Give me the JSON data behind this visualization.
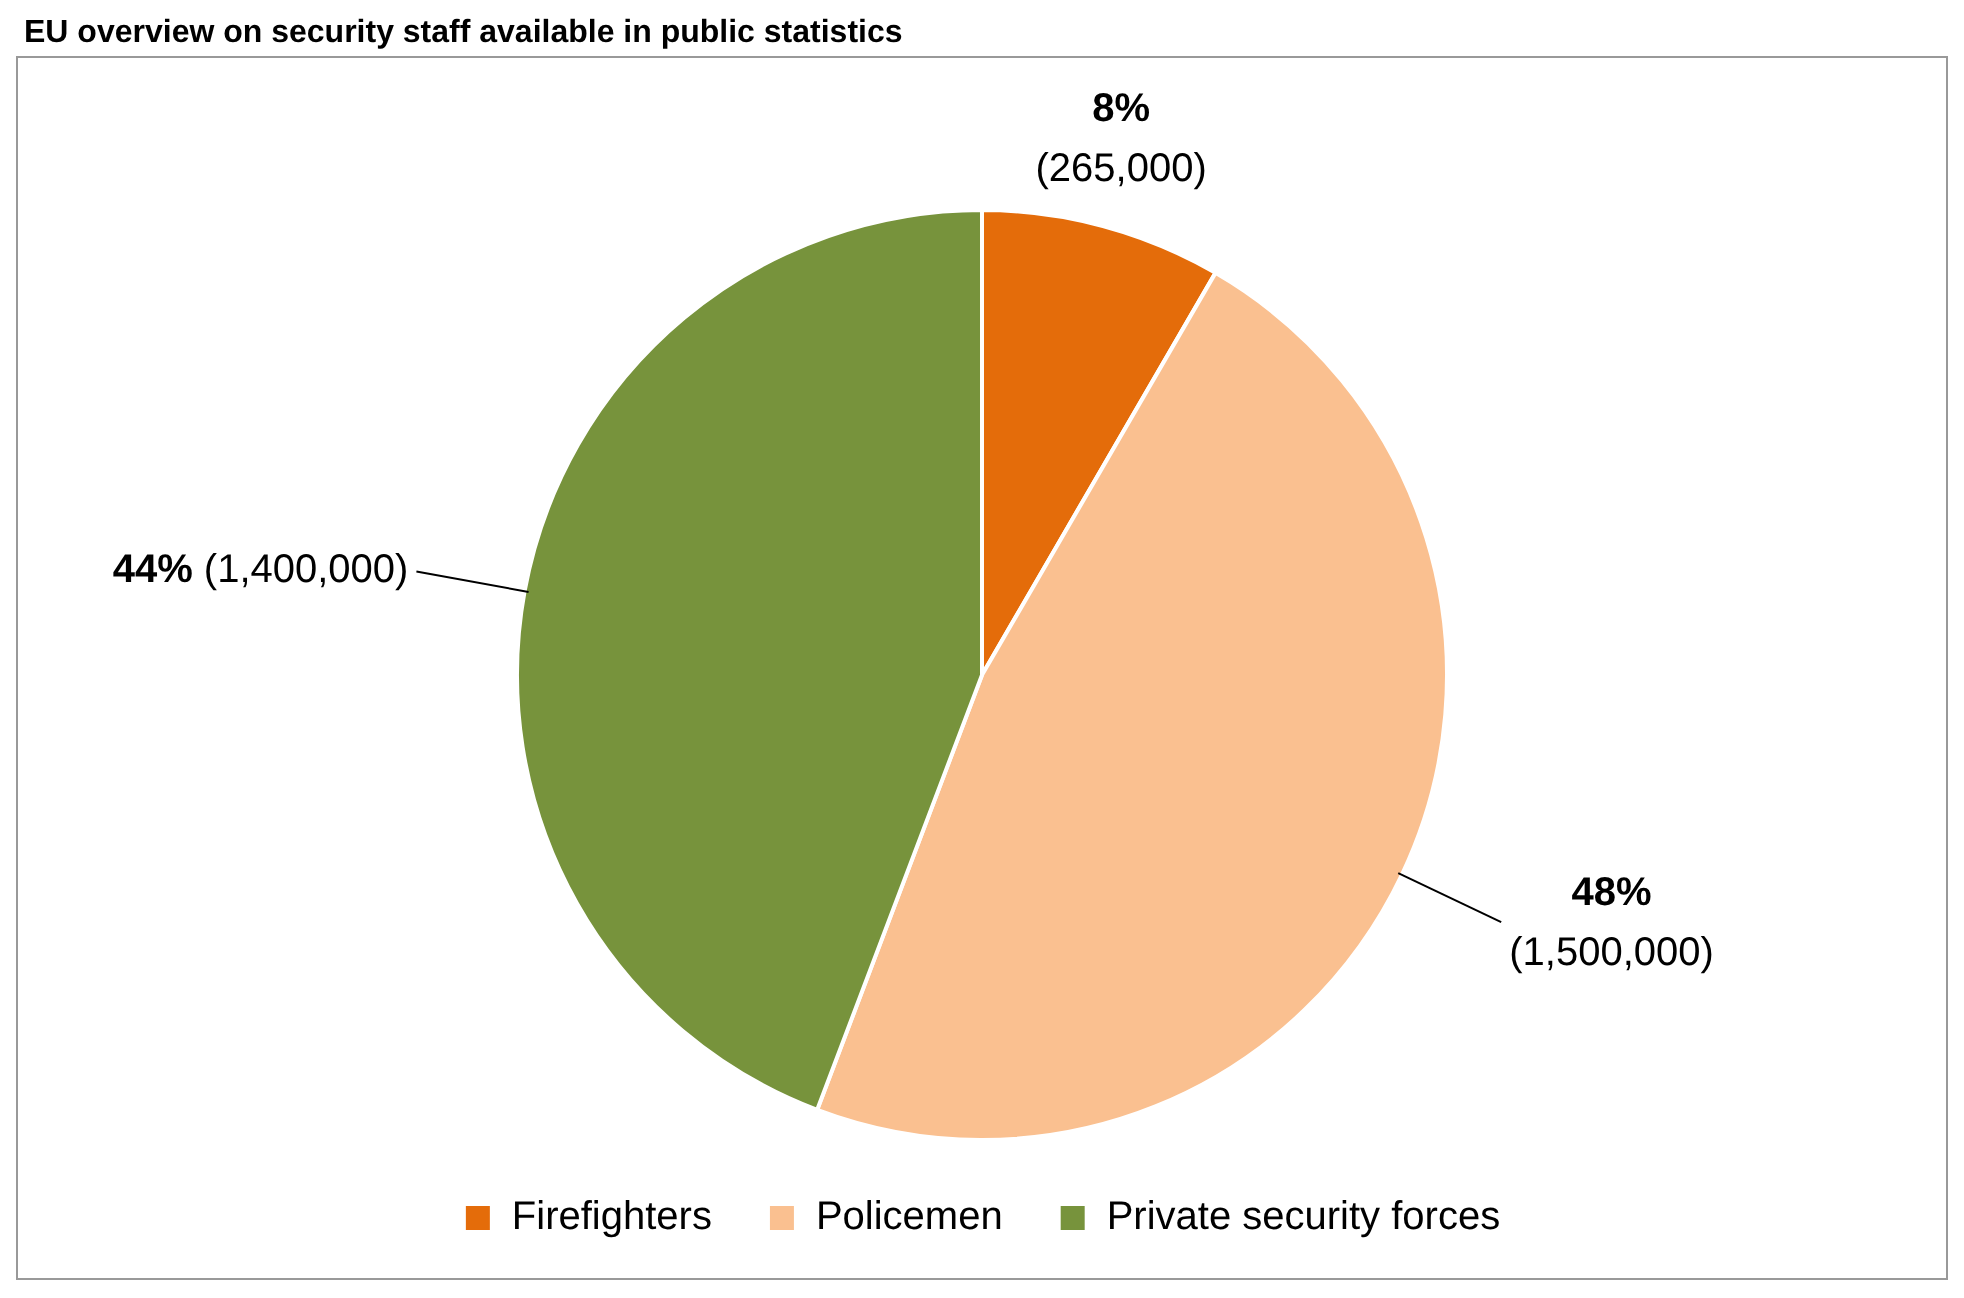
{
  "chart_data": {
    "type": "pie",
    "title": "EU overview on security staff available in public statistics",
    "categories": [
      "Firefighters",
      "Policemen",
      "Private security forces"
    ],
    "values": [
      265000,
      1500000,
      1400000
    ],
    "colors": [
      "#e46c0a",
      "#fac090",
      "#77933c"
    ],
    "value_labels": [
      "8% (265,000)",
      "48% (1,500,000)",
      "44% (1,400,000)"
    ],
    "legend": "bottom"
  }
}
